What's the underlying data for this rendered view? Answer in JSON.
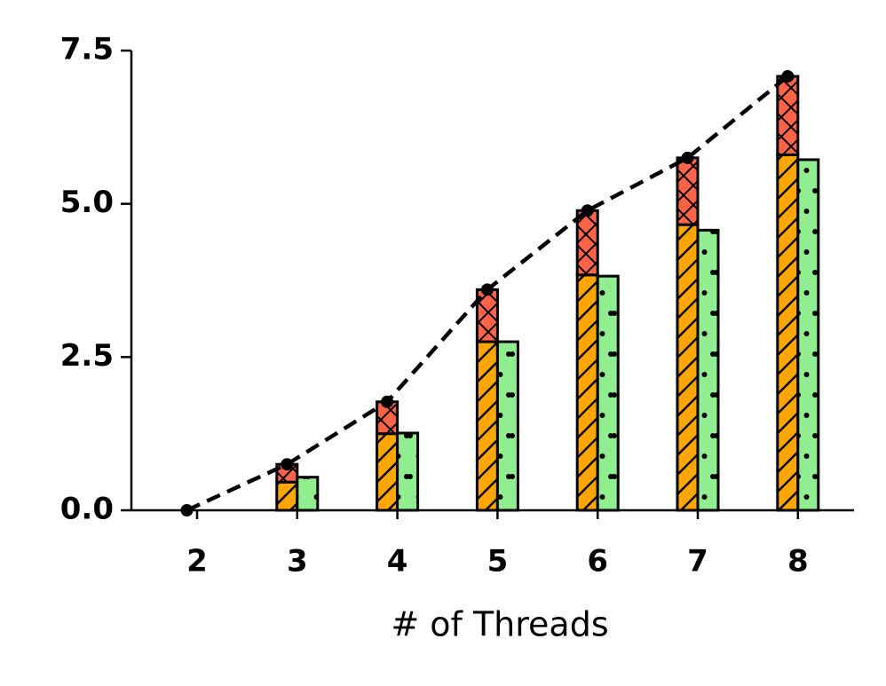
{
  "chart_data": {
    "type": "bar",
    "x_label": "# of Threads",
    "categories": [
      "2",
      "3",
      "4",
      "5",
      "6",
      "7",
      "8"
    ],
    "series": [
      {
        "color": "#ffa500",
        "hatch": "/",
        "stack": "left",
        "values": [
          0,
          0.46,
          1.25,
          2.75,
          3.84,
          4.66,
          5.8
        ]
      },
      {
        "color": "#ff6347",
        "hatch": "x",
        "stack": "left",
        "values": [
          0,
          0.29,
          0.52,
          0.85,
          1.05,
          1.09,
          1.28
        ]
      },
      {
        "color": "#90ee90",
        "hatch": ".",
        "stack": "right",
        "values": [
          0,
          0.54,
          1.26,
          2.75,
          3.82,
          4.57,
          5.72
        ]
      },
      {
        "color": "#000000",
        "style": "dashed-line",
        "values": [
          0,
          0.75,
          1.77,
          3.6,
          4.89,
          5.75,
          7.08
        ]
      }
    ],
    "ylim": [
      0,
      7.5
    ],
    "yticks": [
      {
        "value": 0,
        "label": "0.0"
      },
      2.5,
      {
        "value": 5,
        "label": "5.0"
      },
      7.5
    ],
    "grid": false
  }
}
